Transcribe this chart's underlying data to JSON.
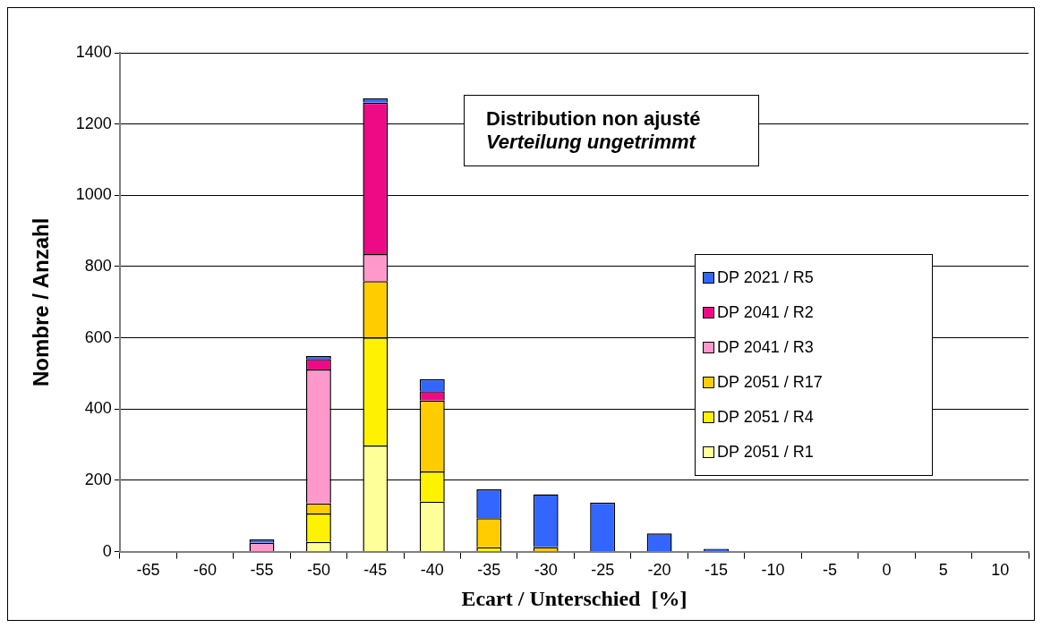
{
  "chart_data": {
    "type": "bar",
    "title": "Distribution non ajusté",
    "subtitle": "Verteilung ungetrimmt",
    "xlabel": "Ecart / Unterschied  [%]",
    "ylabel": "Nombre / Anzahl",
    "categories": [
      "-65",
      "-60",
      "-55",
      "-50",
      "-45",
      "-40",
      "-35",
      "-30",
      "-25",
      "-20",
      "-15",
      "-10",
      "-5",
      "0",
      "5",
      "10"
    ],
    "stacked": true,
    "ylim": [
      0,
      1400
    ],
    "yticks": [
      0,
      200,
      400,
      600,
      800,
      1000,
      1200,
      1400
    ],
    "grid": "y",
    "legend": "right",
    "series": [
      {
        "name": "DP 2051 / R1",
        "color": "#ffff99",
        "values": [
          null,
          null,
          null,
          27,
          298,
          140,
          null,
          null,
          null,
          null,
          null,
          null,
          null,
          null,
          null,
          null
        ]
      },
      {
        "name": "DP 2051 / R4",
        "color": "#fff200",
        "values": [
          null,
          null,
          null,
          80,
          303,
          85,
          12,
          null,
          null,
          null,
          null,
          null,
          null,
          null,
          null,
          null
        ]
      },
      {
        "name": "DP 2051 / R17",
        "color": "#ffcc00",
        "values": [
          null,
          null,
          null,
          28,
          158,
          199,
          82,
          13,
          null,
          null,
          null,
          null,
          null,
          null,
          null,
          null
        ]
      },
      {
        "name": "DP 2041 / R3",
        "color": "#ff99cc",
        "values": [
          null,
          null,
          25,
          376,
          76,
          null,
          null,
          null,
          null,
          null,
          null,
          null,
          null,
          null,
          null,
          null
        ]
      },
      {
        "name": "DP 2041 / R2",
        "color": "#ee0a85",
        "values": [
          null,
          null,
          null,
          30,
          425,
          26,
          null,
          null,
          null,
          null,
          null,
          null,
          null,
          null,
          null,
          null
        ]
      },
      {
        "name": "DP 2021 / R5",
        "color": "#3366ff",
        "values": [
          null,
          null,
          9,
          8,
          12,
          34,
          81,
          148,
          138,
          51,
          8,
          null,
          null,
          null,
          null,
          null
        ]
      }
    ]
  }
}
